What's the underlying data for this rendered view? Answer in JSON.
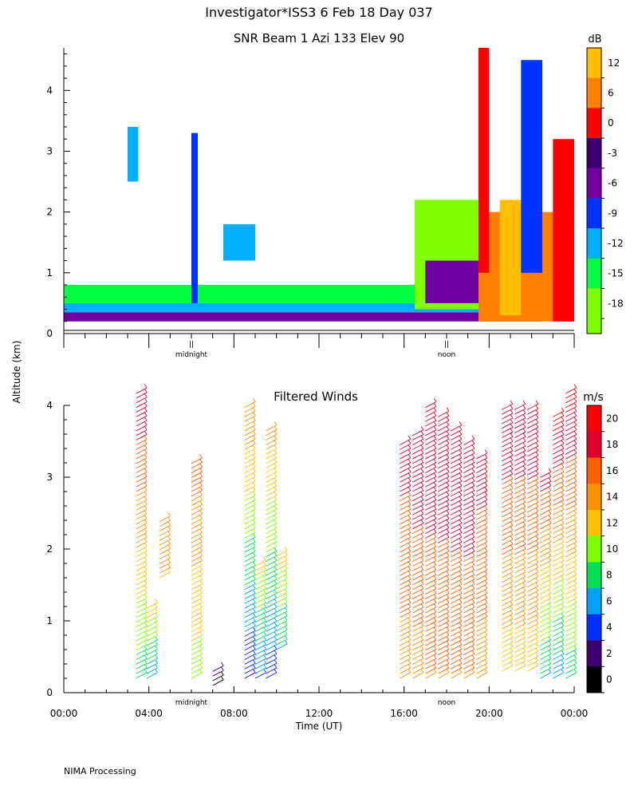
{
  "header": {
    "title": "Investigator*ISS3   6 Feb 18 Day 037",
    "footer": "NIMA Processing",
    "y_label": "Altitude (km)"
  },
  "time_axis": {
    "labels": [
      "00:00",
      "04:00",
      "08:00",
      "12:00",
      "16:00",
      "20:00",
      "00:00"
    ],
    "xlabel": "Time (UT)",
    "midnight_label": "midnight",
    "noon_label": "noon",
    "midnight_hour": 6,
    "noon_hour": 18,
    "range_hours": [
      0,
      24
    ]
  },
  "chart_data": [
    {
      "type": "heatmap",
      "title": "SNR Beam 1 Azi 133 Elev 90",
      "xlabel": "",
      "ylabel": "Altitude (km)",
      "xlim_hours": [
        0,
        24
      ],
      "ylim_km": [
        0,
        4.7
      ],
      "y_ticks": [
        "0",
        "1",
        "2",
        "3",
        "4"
      ],
      "colorbar": {
        "unit": "dB",
        "labels": [
          "12",
          "6",
          "0",
          "-3",
          "-6",
          "-9",
          "-12",
          "-15",
          "-18"
        ],
        "colors": [
          "#ffbf00",
          "#ff8000",
          "#ff0000",
          "#400070",
          "#7000a0",
          "#0033ff",
          "#00b0ff",
          "#00ff40",
          "#80ff00"
        ]
      },
      "regions": [
        {
          "h0": 0.0,
          "h1": 22.5,
          "a0": 0.2,
          "a1": 0.35,
          "level": "-6"
        },
        {
          "h0": 0.0,
          "h1": 22.5,
          "a0": 0.35,
          "a1": 0.5,
          "level": "-12"
        },
        {
          "h0": 0.0,
          "h1": 22.5,
          "a0": 0.5,
          "a1": 0.8,
          "level": "-15"
        },
        {
          "h0": 16.5,
          "h1": 19.5,
          "a0": 0.4,
          "a1": 2.2,
          "level": "-18"
        },
        {
          "h0": 17.0,
          "h1": 19.5,
          "a0": 0.5,
          "a1": 1.2,
          "level": "-6"
        },
        {
          "h0": 19.5,
          "h1": 24.0,
          "a0": 0.2,
          "a1": 2.0,
          "level": "6"
        },
        {
          "h0": 20.5,
          "h1": 21.5,
          "a0": 0.3,
          "a1": 2.2,
          "level": "12"
        },
        {
          "h0": 23.0,
          "h1": 24.0,
          "a0": 0.2,
          "a1": 3.2,
          "level": "0"
        },
        {
          "h0": 19.5,
          "h1": 20.0,
          "a0": 1.0,
          "a1": 4.7,
          "level": "0"
        },
        {
          "h0": 21.5,
          "h1": 22.5,
          "a0": 1.0,
          "a1": 4.5,
          "level": "-9"
        },
        {
          "h0": 3.0,
          "h1": 3.5,
          "a0": 2.5,
          "a1": 3.4,
          "level": "-12"
        },
        {
          "h0": 6.0,
          "h1": 6.3,
          "a0": 0.5,
          "a1": 3.3,
          "level": "-9"
        },
        {
          "h0": 7.5,
          "h1": 9.0,
          "a0": 1.2,
          "a1": 1.8,
          "level": "-12"
        }
      ]
    },
    {
      "type": "wind-barbs",
      "title": "Filtered Winds",
      "xlabel": "Time (UT)",
      "ylabel": "Altitude (km)",
      "xlim_hours": [
        0,
        24
      ],
      "ylim_km": [
        0,
        4.2
      ],
      "y_ticks": [
        "0",
        "1",
        "2",
        "3",
        "4"
      ],
      "colorbar": {
        "unit": "m/s",
        "labels": [
          "20",
          "18",
          "16",
          "14",
          "12",
          "10",
          "8",
          "6",
          "4",
          "2",
          "0"
        ],
        "colors": [
          "#ff0000",
          "#e0002a",
          "#ff6000",
          "#ff9000",
          "#ffc000",
          "#80ff00",
          "#00e050",
          "#00a0ff",
          "#0030ff",
          "#400070",
          "#000000"
        ]
      },
      "columns": [
        {
          "hour": 3.4,
          "alt_min": 0.2,
          "alt_max": 4.2,
          "speed_low": 8,
          "speed_high": 19
        },
        {
          "hour": 3.9,
          "alt_min": 0.2,
          "alt_max": 1.2,
          "speed_low": 6,
          "speed_high": 12
        },
        {
          "hour": 4.5,
          "alt_min": 1.6,
          "alt_max": 2.4,
          "speed_low": 13,
          "speed_high": 14
        },
        {
          "hour": 6.0,
          "alt_min": 0.2,
          "alt_max": 3.2,
          "speed_low": 10,
          "speed_high": 16
        },
        {
          "hour": 7.0,
          "alt_min": 0.1,
          "alt_max": 0.3,
          "speed_low": 0,
          "speed_high": 2
        },
        {
          "hour": 8.5,
          "alt_min": 0.2,
          "alt_max": 4.0,
          "speed_low": 3,
          "speed_high": 15
        },
        {
          "hour": 9.0,
          "alt_min": 0.2,
          "alt_max": 1.8,
          "speed_low": 5,
          "speed_high": 12
        },
        {
          "hour": 9.5,
          "alt_min": 0.2,
          "alt_max": 3.7,
          "speed_low": 4,
          "speed_high": 14
        },
        {
          "hour": 10.0,
          "alt_min": 0.6,
          "alt_max": 1.9,
          "speed_low": 7,
          "speed_high": 12
        },
        {
          "hour": 15.8,
          "alt_min": 0.2,
          "alt_max": 3.5,
          "speed_low": 14,
          "speed_high": 18
        },
        {
          "hour": 16.4,
          "alt_min": 0.2,
          "alt_max": 3.6,
          "speed_low": 14,
          "speed_high": 19
        },
        {
          "hour": 17.0,
          "alt_min": 0.2,
          "alt_max": 4.0,
          "speed_low": 15,
          "speed_high": 19
        },
        {
          "hour": 17.6,
          "alt_min": 0.2,
          "alt_max": 3.9,
          "speed_low": 15,
          "speed_high": 19
        },
        {
          "hour": 18.2,
          "alt_min": 0.2,
          "alt_max": 3.7,
          "speed_low": 15,
          "speed_high": 19
        },
        {
          "hour": 18.8,
          "alt_min": 0.2,
          "alt_max": 3.5,
          "speed_low": 15,
          "speed_high": 19
        },
        {
          "hour": 19.4,
          "alt_min": 0.2,
          "alt_max": 3.3,
          "speed_low": 14,
          "speed_high": 18
        },
        {
          "hour": 20.6,
          "alt_min": 0.3,
          "alt_max": 4.0,
          "speed_low": 12,
          "speed_high": 19
        },
        {
          "hour": 21.2,
          "alt_min": 0.3,
          "alt_max": 4.0,
          "speed_low": 12,
          "speed_high": 19
        },
        {
          "hour": 21.8,
          "alt_min": 0.3,
          "alt_max": 4.0,
          "speed_low": 12,
          "speed_high": 19
        },
        {
          "hour": 22.4,
          "alt_min": 0.2,
          "alt_max": 3.0,
          "speed_low": 7,
          "speed_high": 18
        },
        {
          "hour": 23.0,
          "alt_min": 0.2,
          "alt_max": 3.9,
          "speed_low": 6,
          "speed_high": 20
        },
        {
          "hour": 23.6,
          "alt_min": 0.2,
          "alt_max": 4.2,
          "speed_low": 8,
          "speed_high": 20
        }
      ]
    }
  ]
}
